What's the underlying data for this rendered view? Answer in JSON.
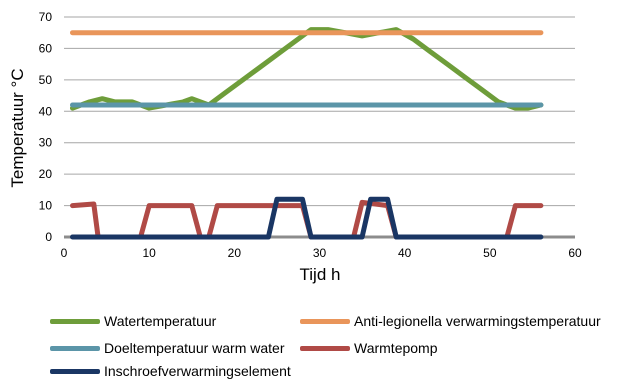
{
  "chart_data": {
    "type": "line",
    "xlabel": "Tijd h",
    "ylabel": "Temperatuur °C",
    "xlim": [
      0,
      60
    ],
    "ylim": [
      0,
      70
    ],
    "xticks": [
      0,
      10,
      20,
      30,
      40,
      50,
      60
    ],
    "yticks": [
      0,
      10,
      20,
      30,
      40,
      50,
      60,
      70
    ],
    "grid": "horizontal",
    "legend_position": "bottom",
    "series": [
      {
        "name": "Watertemperatuur",
        "color": "#6E9D3A",
        "points": [
          [
            1,
            41
          ],
          [
            3,
            43
          ],
          [
            4.5,
            44
          ],
          [
            6,
            43
          ],
          [
            8,
            43
          ],
          [
            10,
            41
          ],
          [
            12,
            42
          ],
          [
            14,
            43
          ],
          [
            15,
            44
          ],
          [
            17,
            42
          ],
          [
            19,
            46
          ],
          [
            21,
            50
          ],
          [
            23,
            54
          ],
          [
            25,
            58
          ],
          [
            27,
            62
          ],
          [
            29,
            66
          ],
          [
            31,
            66
          ],
          [
            33,
            65
          ],
          [
            35,
            64
          ],
          [
            37,
            65
          ],
          [
            39,
            66
          ],
          [
            41,
            63
          ],
          [
            43,
            59
          ],
          [
            45,
            55
          ],
          [
            47,
            51
          ],
          [
            49,
            47
          ],
          [
            51,
            43
          ],
          [
            53,
            41
          ],
          [
            54.5,
            41
          ],
          [
            56,
            42
          ]
        ]
      },
      {
        "name": "Anti-legionella verwarmingstemperatuur",
        "color": "#E9955A",
        "points": [
          [
            1,
            65
          ],
          [
            56,
            65
          ]
        ]
      },
      {
        "name": "Doeltemperatuur warm water",
        "color": "#5B95A8",
        "points": [
          [
            1,
            42
          ],
          [
            56,
            42
          ]
        ]
      },
      {
        "name": "Warmtepomp",
        "color": "#B04A46",
        "points": [
          [
            1,
            10
          ],
          [
            3.5,
            10.5
          ],
          [
            4,
            0
          ],
          [
            9,
            0
          ],
          [
            10,
            10
          ],
          [
            15,
            10
          ],
          [
            16,
            0
          ],
          [
            17,
            0
          ],
          [
            18,
            10
          ],
          [
            24,
            10
          ],
          [
            28,
            10
          ],
          [
            29,
            0
          ],
          [
            34,
            0
          ],
          [
            35,
            11
          ],
          [
            38,
            10
          ],
          [
            39,
            0
          ],
          [
            52,
            0
          ],
          [
            53,
            10
          ],
          [
            56,
            10
          ]
        ]
      },
      {
        "name": "Inschroefverwarmingselement",
        "color": "#1A3664",
        "points": [
          [
            1,
            0
          ],
          [
            24,
            0
          ],
          [
            25,
            12
          ],
          [
            28,
            12
          ],
          [
            29,
            0
          ],
          [
            35,
            0
          ],
          [
            36,
            12
          ],
          [
            38,
            12
          ],
          [
            39,
            0
          ],
          [
            56,
            0
          ]
        ]
      }
    ]
  },
  "legend": {
    "items": [
      {
        "label": "Watertemperatuur",
        "color": "#6E9D3A",
        "pos": "r1c1"
      },
      {
        "label": "Anti-legionella verwarmingstemperatuur",
        "color": "#E9955A",
        "pos": "r1c2"
      },
      {
        "label": "Doeltemperatuur warm water",
        "color": "#5B95A8",
        "pos": "r2c1"
      },
      {
        "label": "Warmtepomp",
        "color": "#B04A46",
        "pos": "r2c2"
      },
      {
        "label": "Inschroefverwarmingselement",
        "color": "#1A3664",
        "pos": "r3c1"
      }
    ]
  }
}
